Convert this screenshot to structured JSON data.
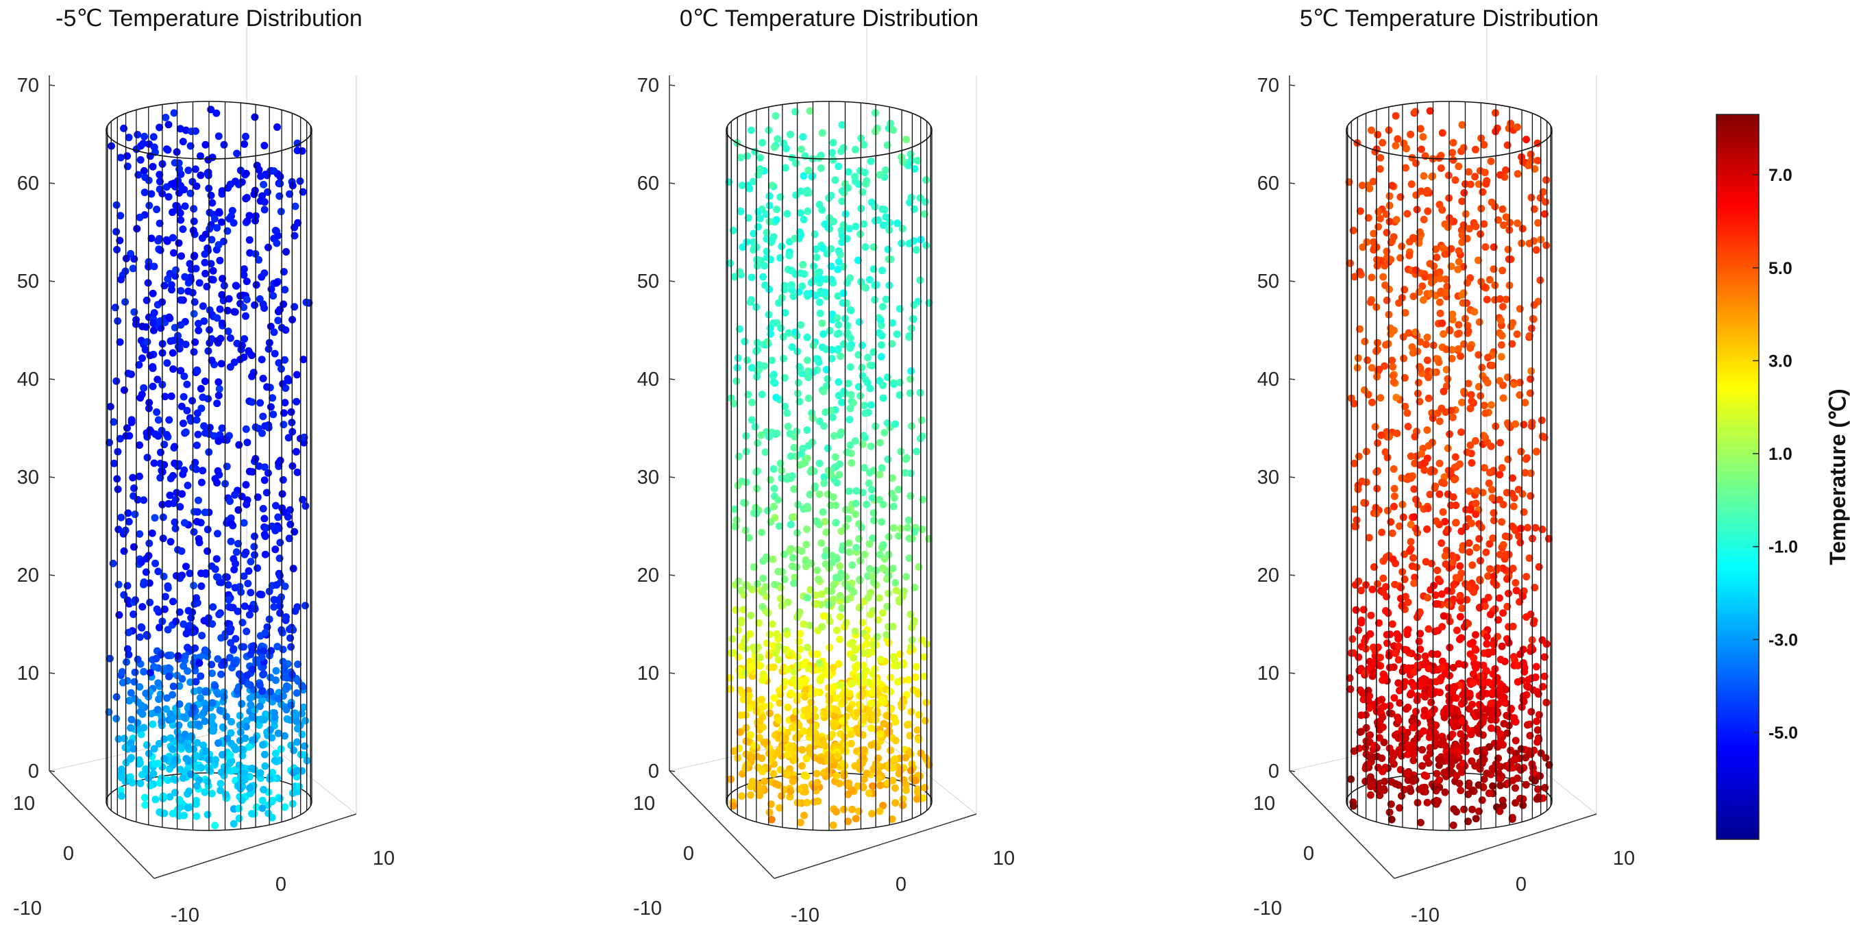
{
  "chart_data": {
    "panels": [
      {
        "type": "scatter3d",
        "title": "-5℃ Temperature Distribution",
        "z_range": [
          0,
          70
        ],
        "z_ticks": [
          "0",
          "10",
          "20",
          "30",
          "40",
          "50",
          "60",
          "70"
        ],
        "x_ticks": [
          "-10",
          "0",
          "10"
        ],
        "y_ticks": [
          "-10",
          "0",
          "10"
        ],
        "cylinder": {
          "radius": 10,
          "height": 70
        },
        "temperature_profile": [
          {
            "height": 0,
            "temp": -1.8
          },
          {
            "height": 8,
            "temp": -2.8
          },
          {
            "height": 15,
            "temp": -4.8
          },
          {
            "height": 30,
            "temp": -5.1
          },
          {
            "height": 64,
            "temp": -5.1
          }
        ],
        "point_count": 1400
      },
      {
        "type": "scatter3d",
        "title": "0℃ Temperature Distribution",
        "z_range": [
          0,
          70
        ],
        "z_ticks": [
          "0",
          "10",
          "20",
          "30",
          "40",
          "50",
          "60",
          "70"
        ],
        "x_ticks": [
          "-10",
          "0",
          "10"
        ],
        "y_ticks": [
          "-10",
          "0",
          "10"
        ],
        "cylinder": {
          "radius": 10,
          "height": 70
        },
        "temperature_profile": [
          {
            "height": 0,
            "temp": 3.6
          },
          {
            "height": 10,
            "temp": 2.9
          },
          {
            "height": 22,
            "temp": 0.6
          },
          {
            "height": 40,
            "temp": -0.6
          },
          {
            "height": 55,
            "temp": -0.8
          },
          {
            "height": 64,
            "temp": -0.3
          }
        ],
        "point_count": 1500
      },
      {
        "type": "scatter3d",
        "title": "5℃ Temperature Distribution",
        "z_range": [
          0,
          70
        ],
        "z_ticks": [
          "0",
          "10",
          "20",
          "30",
          "40",
          "50",
          "60",
          "70"
        ],
        "x_ticks": [
          "-10",
          "0",
          "10"
        ],
        "y_ticks": [
          "-10",
          "0",
          "10"
        ],
        "cylinder": {
          "radius": 10,
          "height": 70
        },
        "temperature_profile": [
          {
            "height": 0,
            "temp": 7.7
          },
          {
            "height": 10,
            "temp": 6.7
          },
          {
            "height": 20,
            "temp": 5.8
          },
          {
            "height": 40,
            "temp": 5.1
          },
          {
            "height": 64,
            "temp": 5.4
          }
        ],
        "point_count": 1500
      }
    ],
    "colorbar": {
      "label": "Temperature (℃)",
      "range": [
        -7.3,
        8.3
      ],
      "ticks": [
        {
          "value": 7,
          "label": "7.0"
        },
        {
          "value": 5,
          "label": "5.0"
        },
        {
          "value": 3,
          "label": "3.0"
        },
        {
          "value": 1,
          "label": "1.0"
        },
        {
          "value": -1,
          "label": "-1.0"
        },
        {
          "value": -3,
          "label": "-3.0"
        },
        {
          "value": -5,
          "label": "-5.0"
        }
      ],
      "colormap": "jet"
    }
  }
}
